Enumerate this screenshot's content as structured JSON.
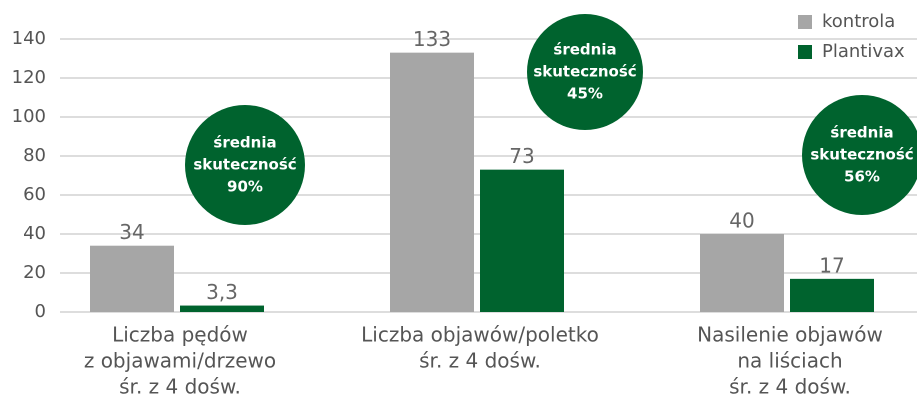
{
  "chart_data": {
    "type": "bar",
    "categories": [
      [
        "Liczba pędów",
        "z objawami/drzewo",
        "śr. z 4 dośw."
      ],
      [
        "Liczba objawów/poletko",
        "śr. z 4 dośw."
      ],
      [
        "Nasilenie objawów",
        "na liściach",
        "śr. z 4 dośw."
      ]
    ],
    "series": [
      {
        "name": "kontrola",
        "color": "#a6a6a6",
        "values": [
          34,
          133,
          40
        ],
        "value_labels": [
          "34",
          "133",
          "40"
        ]
      },
      {
        "name": "Plantivax",
        "color": "#00632e",
        "values": [
          3.3,
          73,
          17
        ],
        "value_labels": [
          "3,3",
          "73",
          "17"
        ]
      }
    ],
    "ylim": [
      0,
      140
    ],
    "yticks": [
      0,
      20,
      40,
      60,
      80,
      100,
      120,
      140
    ],
    "grid": true,
    "legend": "top-right",
    "annotations": [
      {
        "lines": [
          "średnia",
          "skuteczność",
          "90%"
        ],
        "color": "#00632e"
      },
      {
        "lines": [
          "średnia",
          "skuteczność",
          "45%"
        ],
        "color": "#00632e"
      },
      {
        "lines": [
          "średnia",
          "skuteczność",
          "56%"
        ],
        "color": "#00632e"
      }
    ]
  }
}
